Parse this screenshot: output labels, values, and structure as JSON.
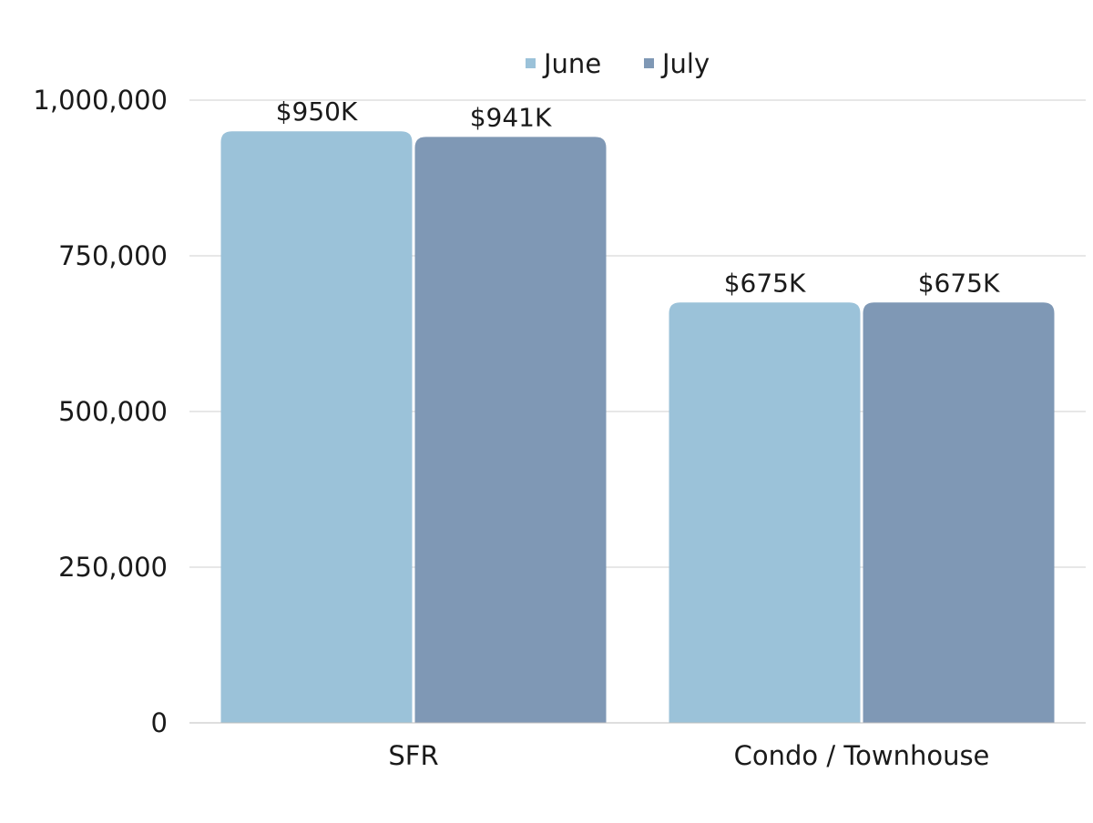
{
  "chart_data": {
    "type": "bar",
    "categories": [
      "SFR",
      "Condo / Townhouse"
    ],
    "series": [
      {
        "name": "June",
        "values": [
          950000,
          675000
        ],
        "labels": [
          "$950K",
          "$675K"
        ],
        "color": "#9bc2d9"
      },
      {
        "name": "July",
        "values": [
          941000,
          675000
        ],
        "labels": [
          "$941K",
          "$675K"
        ],
        "color": "#7f98b5"
      }
    ],
    "ylim": [
      0,
      1000000
    ],
    "yticks": [
      0,
      250000,
      500000,
      750000,
      1000000
    ],
    "ytick_labels": [
      "0",
      "250,000",
      "500,000",
      "750,000",
      "1,000,000"
    ],
    "grid": true,
    "legend_position": "top-center",
    "title": "",
    "xlabel": "",
    "ylabel": ""
  }
}
